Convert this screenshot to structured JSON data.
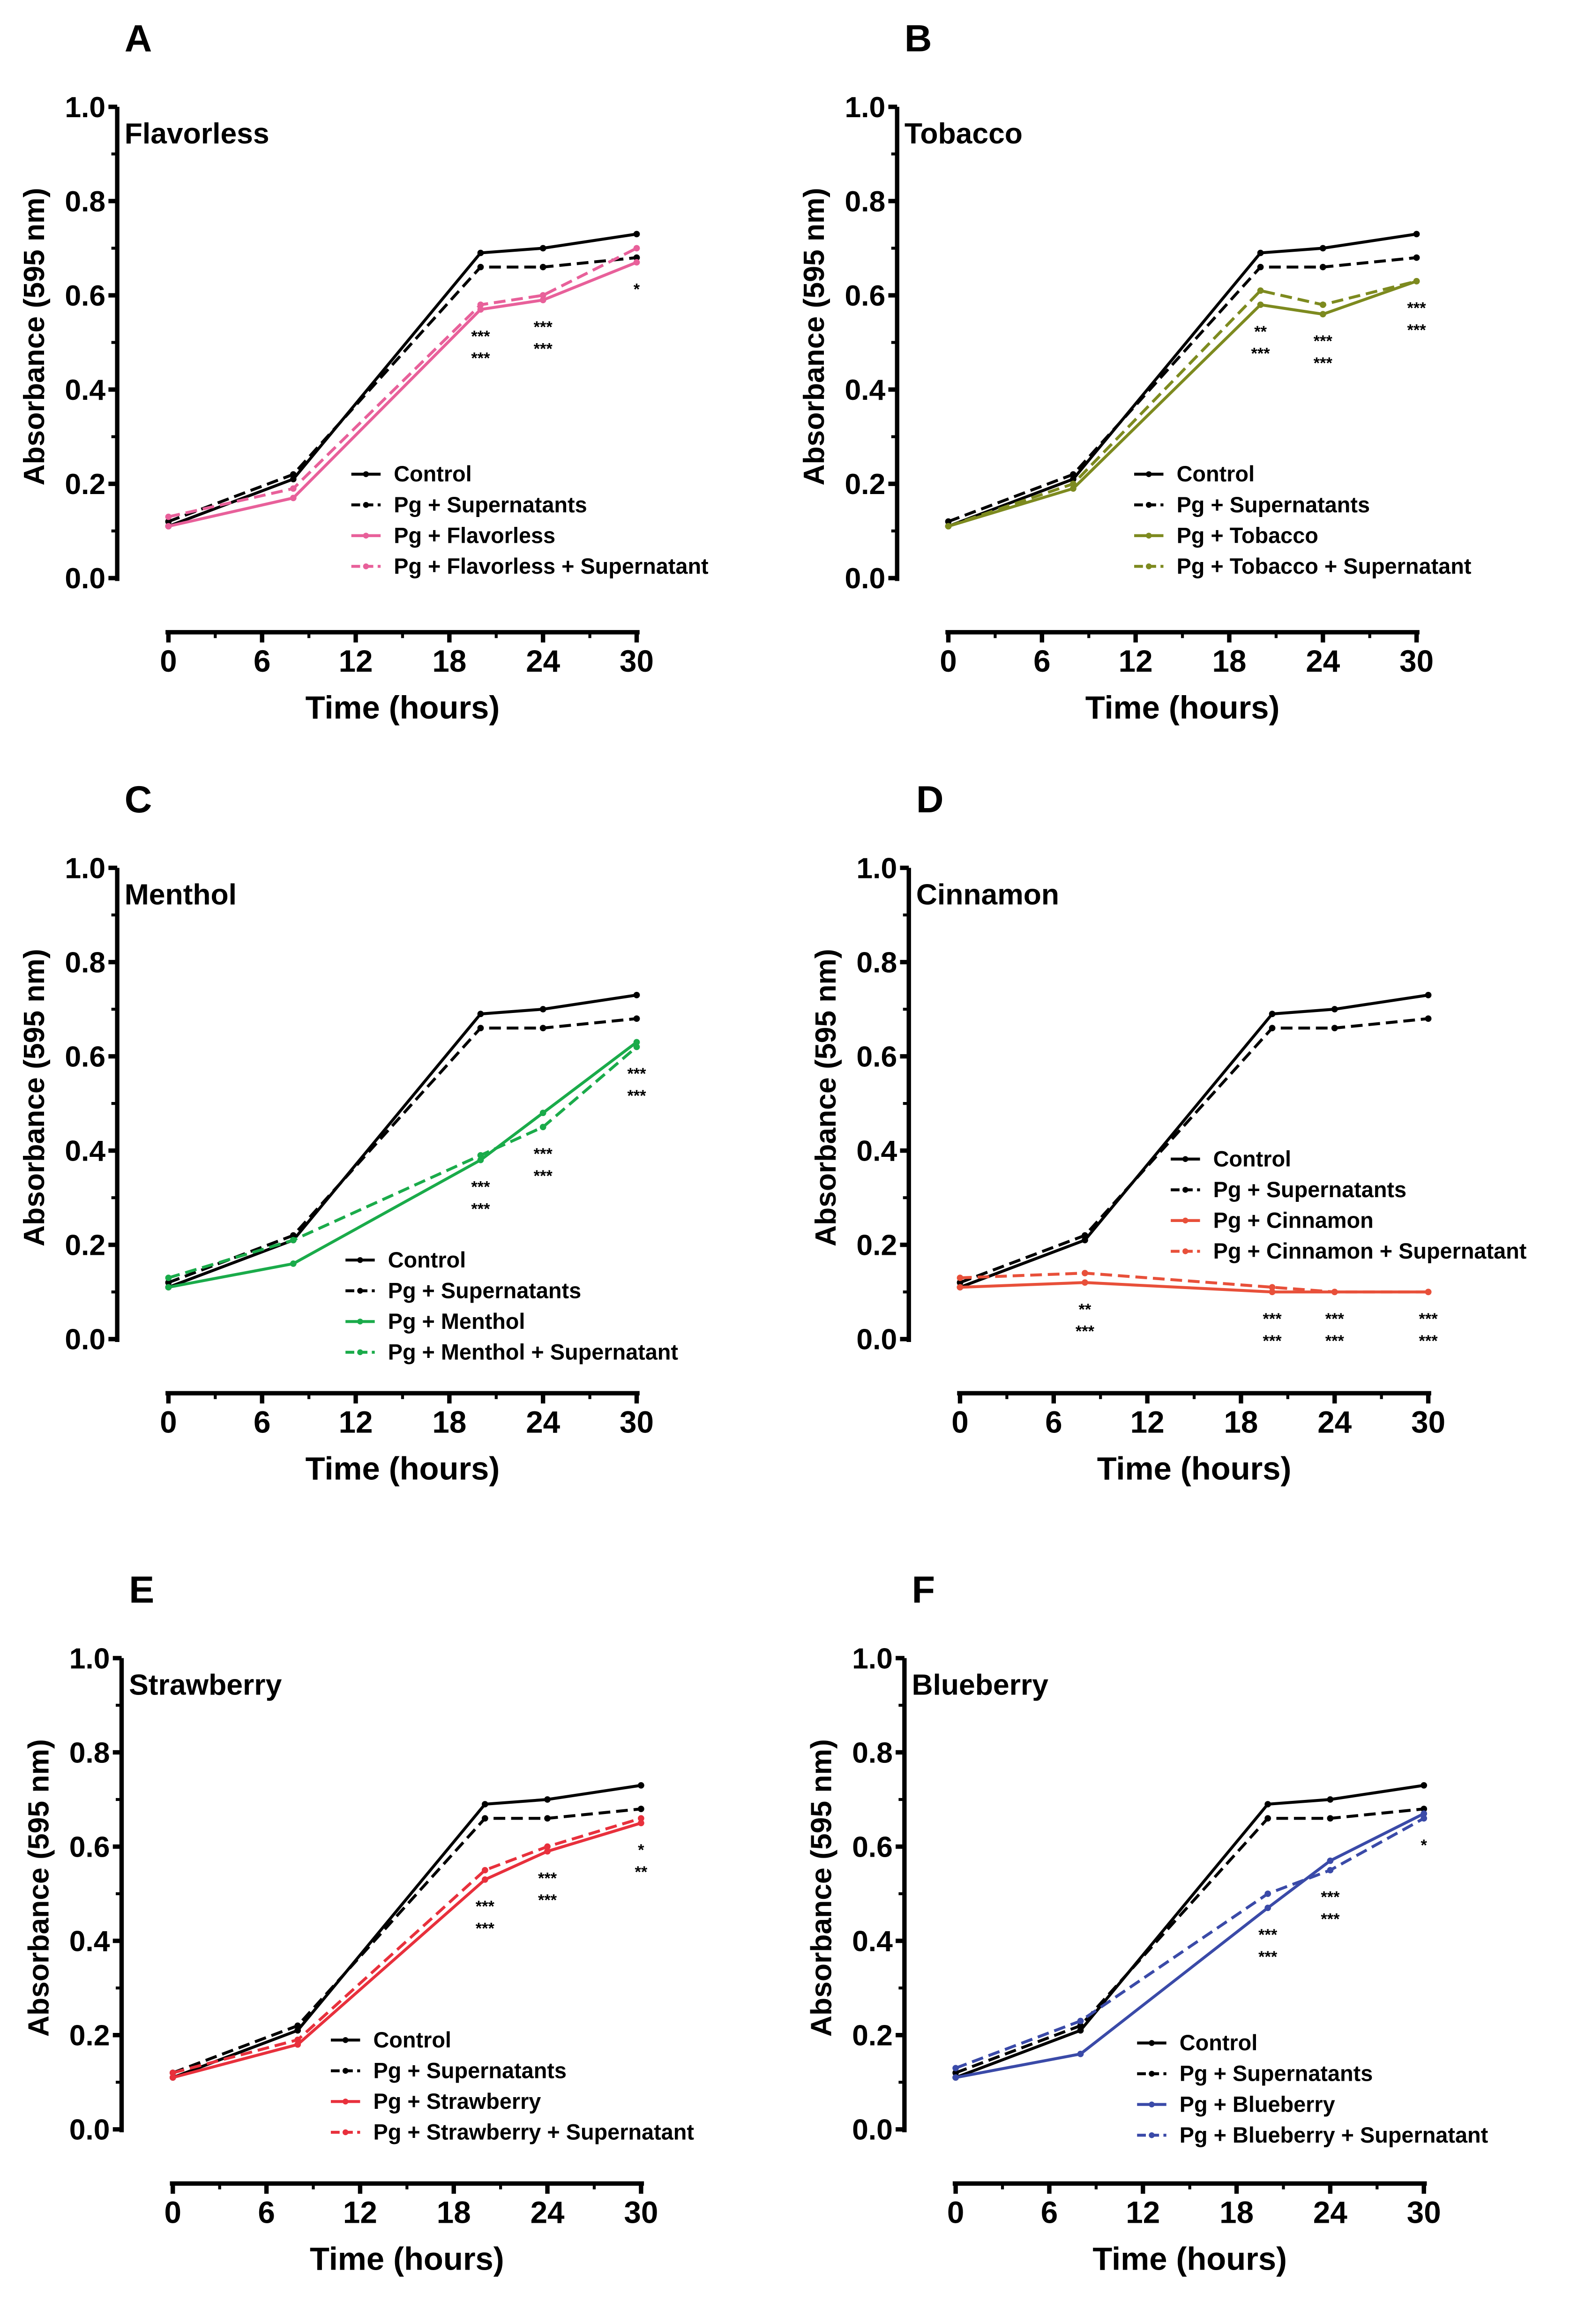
{
  "chart_data": [
    {
      "panel_letter": "A",
      "type": "line",
      "title": "Flavorless",
      "xlabel": "Time (hours)",
      "ylabel": "Absorbance (595 nm)",
      "xlim": [
        0,
        30
      ],
      "ylim": [
        0,
        1.0
      ],
      "xticks": [
        "0",
        "6",
        "12",
        "18",
        "24",
        "30"
      ],
      "yticks": [
        "0.0",
        "0.2",
        "0.4",
        "0.6",
        "0.8",
        "1.0"
      ],
      "grid": false,
      "legend_position": "bottom-right",
      "x": [
        0,
        8,
        20,
        24,
        30
      ],
      "series": [
        {
          "name": "Control",
          "color": "#000000",
          "dashed": false,
          "values": [
            0.11,
            0.21,
            0.69,
            0.7,
            0.73
          ]
        },
        {
          "name": "Pg + Supernatants",
          "color": "#000000",
          "dashed": true,
          "values": [
            0.12,
            0.22,
            0.66,
            0.66,
            0.68
          ]
        },
        {
          "name": "Pg + Flavorless",
          "color": "#e8609a",
          "dashed": false,
          "values": [
            0.11,
            0.17,
            0.57,
            0.59,
            0.67
          ]
        },
        {
          "name": "Pg + Flavorless + Supernatant",
          "color": "#e8609a",
          "dashed": true,
          "values": [
            0.13,
            0.19,
            0.58,
            0.6,
            0.7
          ]
        }
      ],
      "annotations": [
        {
          "x": 20,
          "lines": [
            "***",
            "***"
          ]
        },
        {
          "x": 24,
          "lines": [
            "***",
            "***"
          ]
        },
        {
          "x": 30,
          "lines": [
            "*"
          ]
        }
      ]
    },
    {
      "panel_letter": "B",
      "type": "line",
      "title": "Tobacco",
      "xlabel": "Time (hours)",
      "ylabel": "Absorbance (595 nm)",
      "xlim": [
        0,
        30
      ],
      "ylim": [
        0,
        1.0
      ],
      "xticks": [
        "0",
        "6",
        "12",
        "18",
        "24",
        "30"
      ],
      "yticks": [
        "0.0",
        "0.2",
        "0.4",
        "0.6",
        "0.8",
        "1.0"
      ],
      "grid": false,
      "legend_position": "bottom-right",
      "x": [
        0,
        8,
        20,
        24,
        30
      ],
      "series": [
        {
          "name": "Control",
          "color": "#000000",
          "dashed": false,
          "values": [
            0.11,
            0.21,
            0.69,
            0.7,
            0.73
          ]
        },
        {
          "name": "Pg + Supernatants",
          "color": "#000000",
          "dashed": true,
          "values": [
            0.12,
            0.22,
            0.66,
            0.66,
            0.68
          ]
        },
        {
          "name": "Pg + Tobacco",
          "color": "#7d8a1f",
          "dashed": false,
          "values": [
            0.11,
            0.19,
            0.58,
            0.56,
            0.63
          ]
        },
        {
          "name": "Pg + Tobacco + Supernatant",
          "color": "#7d8a1f",
          "dashed": true,
          "values": [
            0.11,
            0.2,
            0.61,
            0.58,
            0.63
          ]
        }
      ],
      "annotations": [
        {
          "x": 20,
          "lines": [
            "**",
            "***"
          ]
        },
        {
          "x": 24,
          "lines": [
            "***",
            "***"
          ]
        },
        {
          "x": 30,
          "lines": [
            "***",
            "***"
          ]
        }
      ]
    },
    {
      "panel_letter": "C",
      "type": "line",
      "title": "Menthol",
      "xlabel": "Time (hours)",
      "ylabel": "Absorbance (595 nm)",
      "xlim": [
        0,
        30
      ],
      "ylim": [
        0,
        1.0
      ],
      "xticks": [
        "0",
        "6",
        "12",
        "18",
        "24",
        "30"
      ],
      "yticks": [
        "0.0",
        "0.2",
        "0.4",
        "0.6",
        "0.8",
        "1.0"
      ],
      "grid": false,
      "legend_position": "bottom-right",
      "x": [
        0,
        8,
        20,
        24,
        30
      ],
      "series": [
        {
          "name": "Control",
          "color": "#000000",
          "dashed": false,
          "values": [
            0.11,
            0.21,
            0.69,
            0.7,
            0.73
          ]
        },
        {
          "name": "Pg + Supernatants",
          "color": "#000000",
          "dashed": true,
          "values": [
            0.12,
            0.22,
            0.66,
            0.66,
            0.68
          ]
        },
        {
          "name": "Pg + Menthol",
          "color": "#1aab4a",
          "dashed": false,
          "values": [
            0.11,
            0.16,
            0.38,
            0.48,
            0.63
          ]
        },
        {
          "name": "Pg + Menthol + Supernatant",
          "color": "#1aab4a",
          "dashed": true,
          "values": [
            0.13,
            0.21,
            0.39,
            0.45,
            0.62
          ]
        }
      ],
      "annotations": [
        {
          "x": 20,
          "lines": [
            "***",
            "***"
          ]
        },
        {
          "x": 24,
          "lines": [
            "***",
            "***"
          ]
        },
        {
          "x": 30,
          "lines": [
            "***",
            "***"
          ]
        }
      ]
    },
    {
      "panel_letter": "D",
      "type": "line",
      "title": "Cinnamon",
      "xlabel": "Time (hours)",
      "ylabel": "Absorbance (595 nm)",
      "xlim": [
        0,
        30
      ],
      "ylim": [
        0,
        1.0
      ],
      "xticks": [
        "0",
        "6",
        "12",
        "18",
        "24",
        "30"
      ],
      "yticks": [
        "0.0",
        "0.2",
        "0.4",
        "0.6",
        "0.8",
        "1.0"
      ],
      "grid": false,
      "legend_position": "center-right",
      "x": [
        0,
        8,
        20,
        24,
        30
      ],
      "series": [
        {
          "name": "Control",
          "color": "#000000",
          "dashed": false,
          "values": [
            0.11,
            0.21,
            0.69,
            0.7,
            0.73
          ]
        },
        {
          "name": "Pg + Supernatants",
          "color": "#000000",
          "dashed": true,
          "values": [
            0.12,
            0.22,
            0.66,
            0.66,
            0.68
          ]
        },
        {
          "name": "Pg + Cinnamon",
          "color": "#e8503a",
          "dashed": false,
          "values": [
            0.11,
            0.12,
            0.1,
            0.1,
            0.1
          ]
        },
        {
          "name": "Pg + Cinnamon + Supernatant",
          "color": "#e8503a",
          "dashed": true,
          "values": [
            0.13,
            0.14,
            0.11,
            0.1,
            0.1
          ]
        }
      ],
      "annotations": [
        {
          "x": 8,
          "lines": [
            "**",
            "***"
          ]
        },
        {
          "x": 20,
          "lines": [
            "***",
            "***"
          ]
        },
        {
          "x": 24,
          "lines": [
            "***",
            "***"
          ]
        },
        {
          "x": 30,
          "lines": [
            "***",
            "***"
          ]
        }
      ]
    },
    {
      "panel_letter": "E",
      "type": "line",
      "title": "Strawberry",
      "xlabel": "Time (hours)",
      "ylabel": "Absorbance (595 nm)",
      "xlim": [
        0,
        30
      ],
      "ylim": [
        0,
        1.0
      ],
      "xticks": [
        "0",
        "6",
        "12",
        "18",
        "24",
        "30"
      ],
      "yticks": [
        "0.0",
        "0.2",
        "0.4",
        "0.6",
        "0.8",
        "1.0"
      ],
      "grid": false,
      "legend_position": "bottom-right",
      "x": [
        0,
        8,
        20,
        24,
        30
      ],
      "series": [
        {
          "name": "Control",
          "color": "#000000",
          "dashed": false,
          "values": [
            0.11,
            0.21,
            0.69,
            0.7,
            0.73
          ]
        },
        {
          "name": "Pg + Supernatants",
          "color": "#000000",
          "dashed": true,
          "values": [
            0.12,
            0.22,
            0.66,
            0.66,
            0.68
          ]
        },
        {
          "name": "Pg + Strawberry",
          "color": "#e8303c",
          "dashed": false,
          "values": [
            0.11,
            0.18,
            0.53,
            0.59,
            0.65
          ]
        },
        {
          "name": "Pg + Strawberry + Supernatant",
          "color": "#e8303c",
          "dashed": true,
          "values": [
            0.12,
            0.19,
            0.55,
            0.6,
            0.66
          ]
        }
      ],
      "annotations": [
        {
          "x": 20,
          "lines": [
            "***",
            "***"
          ]
        },
        {
          "x": 24,
          "lines": [
            "***",
            "***"
          ]
        },
        {
          "x": 30,
          "lines": [
            "*",
            "**"
          ]
        }
      ]
    },
    {
      "panel_letter": "F",
      "type": "line",
      "title": "Blueberry",
      "xlabel": "Time (hours)",
      "ylabel": "Absorbance (595 nm)",
      "xlim": [
        0,
        30
      ],
      "ylim": [
        0,
        1.0
      ],
      "xticks": [
        "0",
        "6",
        "12",
        "18",
        "24",
        "30"
      ],
      "yticks": [
        "0.0",
        "0.2",
        "0.4",
        "0.6",
        "0.8",
        "1.0"
      ],
      "grid": false,
      "legend_position": "bottom-right",
      "x": [
        0,
        8,
        20,
        24,
        30
      ],
      "series": [
        {
          "name": "Control",
          "color": "#000000",
          "dashed": false,
          "values": [
            0.11,
            0.21,
            0.69,
            0.7,
            0.73
          ]
        },
        {
          "name": "Pg + Supernatants",
          "color": "#000000",
          "dashed": true,
          "values": [
            0.12,
            0.22,
            0.66,
            0.66,
            0.68
          ]
        },
        {
          "name": "Pg + Blueberry",
          "color": "#3a4aa8",
          "dashed": false,
          "values": [
            0.11,
            0.16,
            0.47,
            0.57,
            0.67
          ]
        },
        {
          "name": "Pg + Blueberry + Supernatant",
          "color": "#3a4aa8",
          "dashed": true,
          "values": [
            0.13,
            0.23,
            0.5,
            0.55,
            0.66
          ]
        }
      ],
      "annotations": [
        {
          "x": 20,
          "lines": [
            "***",
            "***"
          ]
        },
        {
          "x": 24,
          "lines": [
            "***",
            "***"
          ]
        },
        {
          "x": 30,
          "lines": [
            "*"
          ]
        }
      ]
    }
  ]
}
